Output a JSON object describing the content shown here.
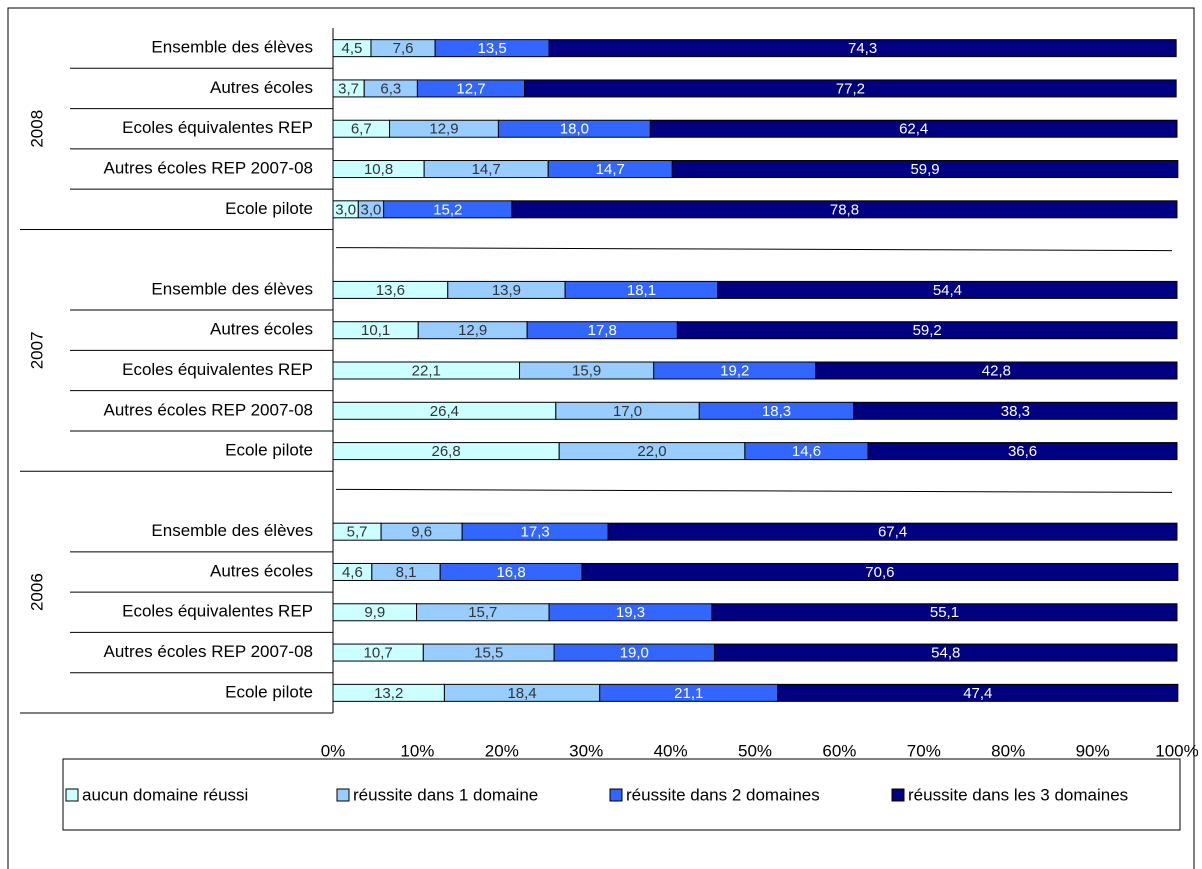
{
  "chart_data": {
    "type": "stacked_bar_horizontal",
    "categories": [
      "Ensemble des élèves",
      "Autres écoles",
      "Ecoles équivalentes REP",
      "Autres écoles REP 2007-08",
      "Ecole pilote",
      null,
      "Ensemble des élèves",
      "Autres écoles",
      "Ecoles équivalentes REP",
      "Autres écoles REP 2007-08",
      "Ecole pilote",
      null,
      "Ensemble des élèves",
      "Autres écoles",
      "Ecoles équivalentes REP",
      "Autres écoles REP 2007-08",
      "Ecole pilote"
    ],
    "group_labels": [
      "2008",
      "2007",
      "2006"
    ],
    "series": [
      {
        "name": "aucun domaine réussi",
        "color": "#ccffff",
        "values": [
          4.5,
          3.7,
          6.7,
          10.8,
          3.0,
          null,
          13.6,
          10.1,
          22.1,
          26.4,
          26.8,
          null,
          5.7,
          4.6,
          9.9,
          10.7,
          13.2
        ],
        "value_labels": [
          "4,5",
          "3,7",
          "6,7",
          "10,8",
          "3,0",
          null,
          "13,6",
          "10,1",
          "22,1",
          "26,4",
          "26,8",
          null,
          "5,7",
          "4,6",
          "9,9",
          "10,7",
          "13,2"
        ]
      },
      {
        "name": "réussite dans 1 domaine",
        "color": "#99ccff",
        "values": [
          7.6,
          6.3,
          12.9,
          14.7,
          3.0,
          null,
          13.9,
          12.9,
          15.9,
          17.0,
          22.0,
          null,
          9.6,
          8.1,
          15.7,
          15.5,
          18.4
        ],
        "value_labels": [
          "7,6",
          "6,3",
          "12,9",
          "14,7",
          "3,0",
          null,
          "13,9",
          "12,9",
          "15,9",
          "17,0",
          "22,0",
          null,
          "9,6",
          "8,1",
          "15,7",
          "15,5",
          "18,4"
        ]
      },
      {
        "name": "réussite dans 2 domaines",
        "color": "#3366ff",
        "values": [
          13.5,
          12.7,
          18.0,
          14.7,
          15.2,
          null,
          18.1,
          17.8,
          19.2,
          18.3,
          14.6,
          null,
          17.3,
          16.8,
          19.3,
          19.0,
          21.1
        ],
        "value_labels": [
          "13,5",
          "12,7",
          "18,0",
          "14,7",
          "15,2",
          null,
          "18,1",
          "17,8",
          "19,2",
          "18,3",
          "14,6",
          null,
          "17,3",
          "16,8",
          "19,3",
          "19,0",
          "21,1"
        ]
      },
      {
        "name": "réussite dans les 3 domaines",
        "color": "#000080",
        "values": [
          74.3,
          77.2,
          62.4,
          59.9,
          78.8,
          null,
          54.4,
          59.2,
          42.8,
          38.3,
          36.6,
          null,
          67.4,
          70.6,
          55.1,
          54.8,
          47.4
        ],
        "value_labels": [
          "74,3",
          "77,2",
          "62,4",
          "59,9",
          "78,8",
          null,
          "54,4",
          "59,2",
          "42,8",
          "38,3",
          "36,6",
          null,
          "67,4",
          "70,6",
          "55,1",
          "54,8",
          "47,4"
        ]
      }
    ],
    "xlim": [
      0,
      100
    ],
    "xticks": [
      {
        "value": 0,
        "label": "0%"
      },
      {
        "value": 10,
        "label": "10%"
      },
      {
        "value": 20,
        "label": "20%"
      },
      {
        "value": 30,
        "label": "30%"
      },
      {
        "value": 40,
        "label": "40%"
      },
      {
        "value": 50,
        "label": "50%"
      },
      {
        "value": 60,
        "label": "60%"
      },
      {
        "value": 70,
        "label": "70%"
      },
      {
        "value": 80,
        "label": "80%"
      },
      {
        "value": 90,
        "label": "90%"
      },
      {
        "value": 100,
        "label": "100%"
      }
    ],
    "legend": "bottom"
  }
}
